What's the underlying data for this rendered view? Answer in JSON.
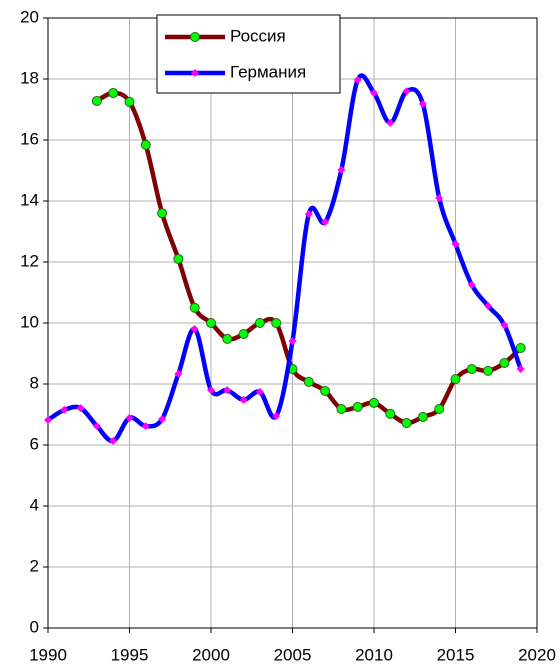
{
  "chart_data": {
    "type": "line",
    "x": [
      1990,
      1991,
      1992,
      1993,
      1994,
      1995,
      1996,
      1997,
      1998,
      1999,
      2000,
      2001,
      2002,
      2003,
      2004,
      2005,
      2006,
      2007,
      2008,
      2009,
      2010,
      2011,
      2012,
      2013,
      2014,
      2015,
      2016,
      2017,
      2018,
      2019
    ],
    "series": [
      {
        "name": "Россия",
        "color": "#800000",
        "marker": "circle",
        "marker_color": "#00ff00",
        "values": [
          null,
          null,
          null,
          17.28,
          17.54,
          17.25,
          15.84,
          13.6,
          12.1,
          10.5,
          10.0,
          9.48,
          9.64,
          10.0,
          10.0,
          8.49,
          8.07,
          7.77,
          7.18,
          7.25,
          7.38,
          7.02,
          6.72,
          6.92,
          7.18,
          8.16,
          8.49,
          8.43,
          8.69,
          9.18
        ]
      },
      {
        "name": "Германия",
        "color": "#0000ff",
        "marker": "diamond",
        "marker_color": "#ff00ff",
        "values": [
          6.82,
          7.15,
          7.21,
          6.62,
          6.13,
          6.89,
          6.62,
          6.85,
          8.33,
          9.8,
          7.8,
          7.8,
          7.48,
          7.74,
          6.95,
          9.41,
          13.57,
          13.31,
          15.02,
          17.97,
          17.54,
          16.56,
          17.6,
          17.18,
          14.1,
          12.59,
          11.25,
          10.56,
          9.93,
          8.49
        ]
      }
    ],
    "xlim": [
      1990,
      2020
    ],
    "xticks": [
      1990,
      1995,
      2000,
      2005,
      2010,
      2015,
      2020
    ],
    "ylim": [
      0,
      20
    ],
    "yticks": [
      0,
      2,
      4,
      6,
      8,
      10,
      12,
      14,
      16,
      18,
      20
    ],
    "grid": true,
    "legend": "top"
  }
}
